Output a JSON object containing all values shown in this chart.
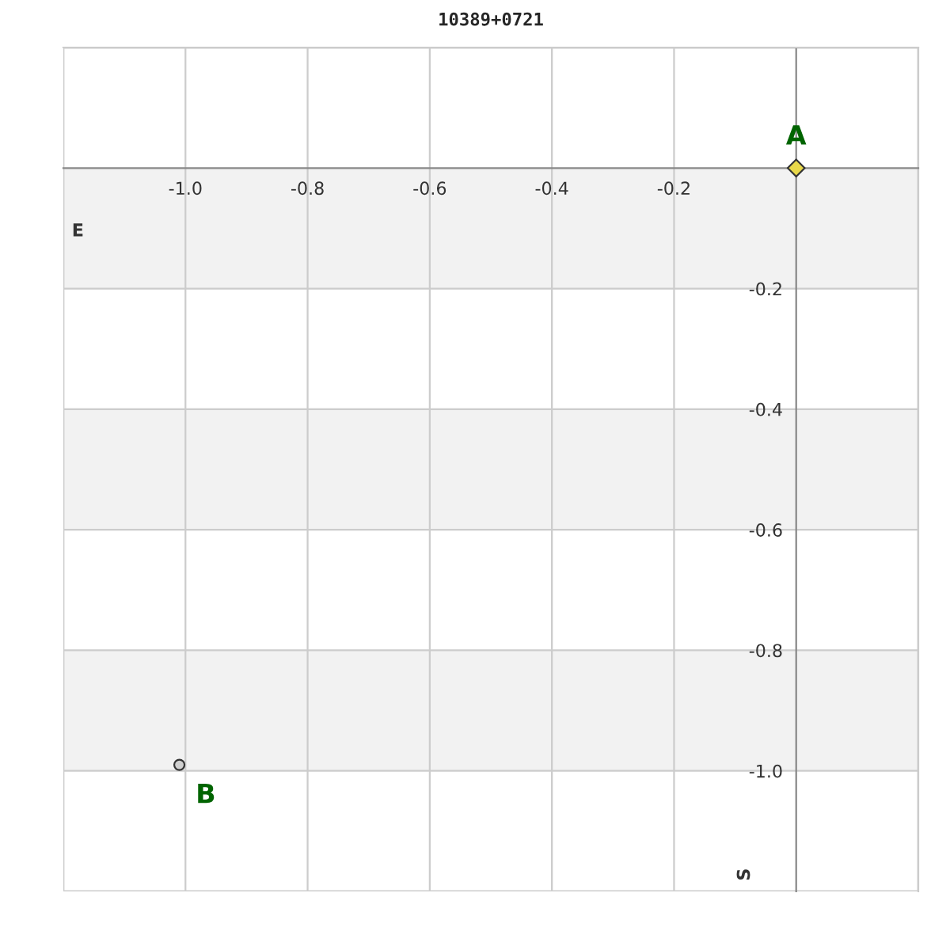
{
  "chart_data": {
    "type": "scatter",
    "title": "10389+0721",
    "xlabel": "E",
    "ylabel": "S",
    "series": [
      {
        "name": "A",
        "color": "#e8d84a",
        "marker": "diamond",
        "x": [
          0
        ],
        "values": [
          0
        ]
      },
      {
        "name": "B",
        "color": "#d0d0d0",
        "marker": "circle",
        "x": [
          -1.01
        ],
        "values": [
          -0.99
        ]
      }
    ],
    "xlim": [
      -1.2,
      0.2
    ],
    "ylim": [
      -1.2,
      0.2
    ],
    "xticks": [
      {
        "value": -1,
        "label": "-1.0"
      },
      -0.8,
      -0.6,
      -0.4,
      -0.2
    ],
    "yticks": [
      {
        "value": -1,
        "label": "-1.0"
      },
      -0.8,
      -0.6,
      -0.4,
      -0.2
    ],
    "bands": [
      {
        "axis": "y",
        "from": -0.2,
        "to": 0,
        "color": "#f2f2f2"
      },
      {
        "axis": "y",
        "from": -0.6,
        "to": -0.4,
        "color": "#f2f2f2"
      },
      {
        "axis": "y",
        "from": -1.0,
        "to": -0.8,
        "color": "#f2f2f2"
      }
    ],
    "grid": true,
    "legend": false
  }
}
